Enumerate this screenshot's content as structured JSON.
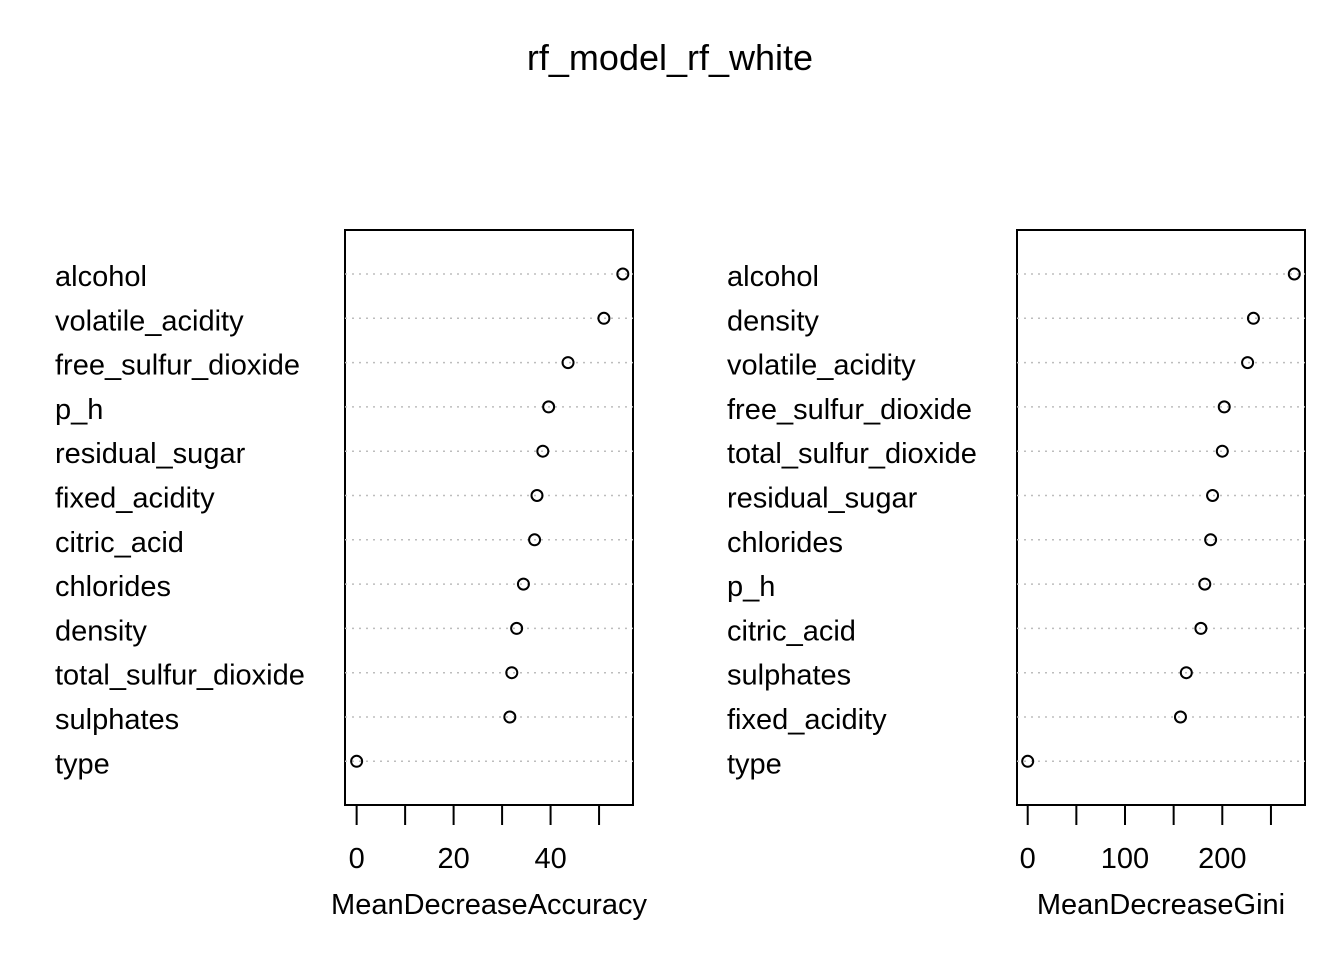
{
  "title": "rf_model_rf_white",
  "chart_data": [
    {
      "type": "scatter",
      "subtype": "dotchart",
      "xlabel": "MeanDecreaseAccuracy",
      "xlim": [
        -2.4,
        57
      ],
      "xticks": [
        0,
        10,
        20,
        30,
        40,
        50
      ],
      "xtick_labels": [
        "0",
        "",
        "20",
        "",
        "40",
        ""
      ],
      "grid": "dotted horizontal",
      "categories": [
        "alcohol",
        "volatile_acidity",
        "free_sulfur_dioxide",
        "p_h",
        "residual_sugar",
        "fixed_acidity",
        "citric_acid",
        "chlorides",
        "density",
        "total_sulfur_dioxide",
        "sulphates",
        "type"
      ],
      "values": [
        54.9,
        51.0,
        43.6,
        39.6,
        38.4,
        37.2,
        36.7,
        34.4,
        33.0,
        32.0,
        31.6,
        0.0
      ]
    },
    {
      "type": "scatter",
      "subtype": "dotchart",
      "xlabel": "MeanDecreaseGini",
      "xlim": [
        -11,
        285
      ],
      "xticks": [
        0,
        50,
        100,
        150,
        200,
        250
      ],
      "xtick_labels": [
        "0",
        "",
        "100",
        "",
        "200",
        ""
      ],
      "grid": "dotted horizontal",
      "categories": [
        "alcohol",
        "density",
        "volatile_acidity",
        "free_sulfur_dioxide",
        "total_sulfur_dioxide",
        "residual_sugar",
        "chlorides",
        "p_h",
        "citric_acid",
        "sulphates",
        "fixed_acidity",
        "type"
      ],
      "values": [
        274,
        232,
        226,
        202,
        200,
        190,
        188,
        182,
        178,
        163,
        157,
        0
      ]
    }
  ]
}
